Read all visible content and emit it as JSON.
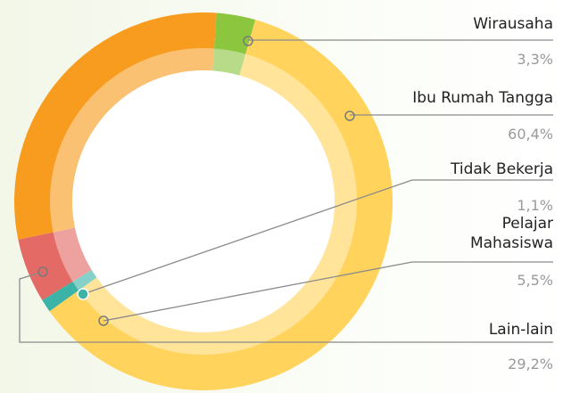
{
  "chart_data": {
    "type": "donut",
    "categories": [
      "Wirausaha",
      "Ibu Rumah Tangga",
      "Tidak Bekerja",
      "Pelajar Mahasiswa",
      "Lain-lain"
    ],
    "values": [
      3.3,
      60.4,
      1.1,
      5.5,
      29.2
    ],
    "value_labels": [
      "3,3%",
      "60,4%",
      "1,1%",
      "5,5%",
      "29,2%"
    ],
    "colors": [
      "#8cc63f",
      "#ffd35c",
      "#3bb3a6",
      "#e46a65",
      "#f79c1e"
    ]
  }
}
